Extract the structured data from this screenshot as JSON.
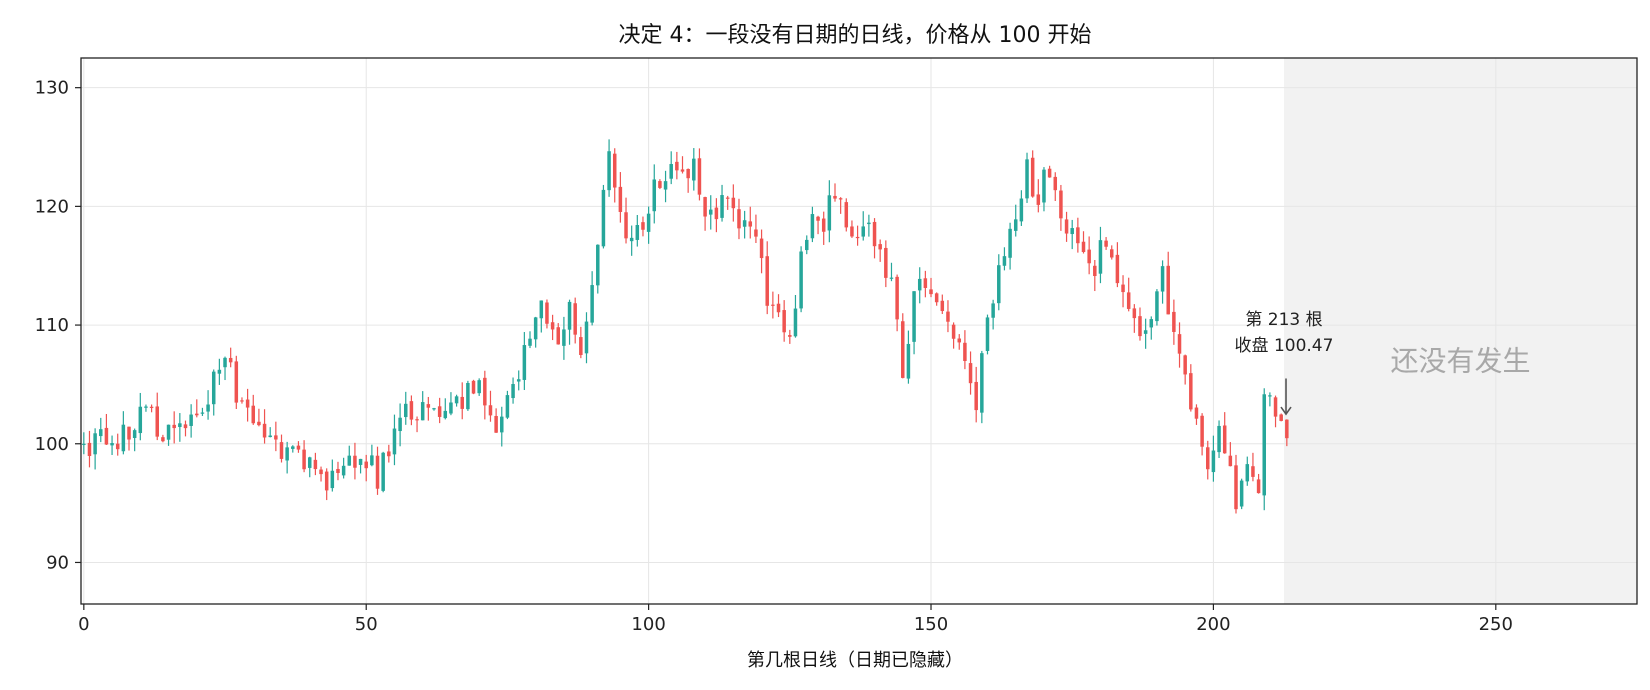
{
  "chart_data": {
    "type": "candlestick",
    "title": "决定 4：一段没有日期的日线，价格从 100 开始",
    "xlabel": "第几根日线（日期已隐藏）",
    "ylabel": "",
    "xlim": [
      -0.5,
      275
    ],
    "ylim": [
      86.5,
      132.5
    ],
    "xticks": [
      0,
      50,
      100,
      150,
      200,
      250
    ],
    "yticks": [
      90,
      100,
      110,
      120,
      130
    ],
    "grid": true,
    "future_region": {
      "x_start": 212.5,
      "x_end": 275,
      "label": "还没有发生"
    },
    "annotation": {
      "x": 213,
      "y": 102.5,
      "line1": "第 213 根",
      "line2": "收盘 100.47"
    },
    "colors": {
      "up": "#26a69a",
      "down": "#ef5350",
      "future": "#f2f2f2",
      "grid": "#e6e6e6",
      "arrow": "#555555"
    },
    "anchors": [
      [
        0,
        100
      ],
      [
        5,
        100.5
      ],
      [
        8,
        101
      ],
      [
        10,
        102.5
      ],
      [
        12,
        103
      ],
      [
        14,
        100
      ],
      [
        17,
        102.5
      ],
      [
        20,
        102
      ],
      [
        22,
        104
      ],
      [
        25,
        107.5
      ],
      [
        27,
        104
      ],
      [
        29,
        102.5
      ],
      [
        31,
        102
      ],
      [
        33,
        100
      ],
      [
        35,
        99
      ],
      [
        37,
        100.5
      ],
      [
        40,
        98
      ],
      [
        43,
        97
      ],
      [
        45,
        97
      ],
      [
        48,
        98.5
      ],
      [
        50,
        99
      ],
      [
        52,
        97
      ],
      [
        54,
        99.5
      ],
      [
        57,
        102.5
      ],
      [
        60,
        103
      ],
      [
        62,
        102
      ],
      [
        65,
        103
      ],
      [
        68,
        104.5
      ],
      [
        71,
        104
      ],
      [
        73,
        102
      ],
      [
        75,
        103
      ],
      [
        78,
        108
      ],
      [
        80,
        111
      ],
      [
        82,
        111
      ],
      [
        84,
        107.5
      ],
      [
        86,
        112
      ],
      [
        88,
        108.5
      ],
      [
        90,
        114
      ],
      [
        92,
        121
      ],
      [
        93,
        124
      ],
      [
        95,
        119
      ],
      [
        97,
        117
      ],
      [
        99,
        119
      ],
      [
        101,
        121.5
      ],
      [
        104,
        123
      ],
      [
        106,
        123
      ],
      [
        108,
        124
      ],
      [
        109,
        121
      ],
      [
        111,
        119
      ],
      [
        113,
        121
      ],
      [
        115,
        119
      ],
      [
        117,
        118
      ],
      [
        119,
        117
      ],
      [
        121,
        112
      ],
      [
        123,
        111
      ],
      [
        125,
        109
      ],
      [
        127,
        115
      ],
      [
        129,
        119.5
      ],
      [
        131,
        119
      ],
      [
        133,
        121
      ],
      [
        135,
        119
      ],
      [
        137,
        117
      ],
      [
        139,
        119
      ],
      [
        141,
        116
      ],
      [
        143,
        114
      ],
      [
        145,
        106
      ],
      [
        147,
        113
      ],
      [
        149,
        113
      ],
      [
        151,
        113
      ],
      [
        153,
        111
      ],
      [
        155,
        109
      ],
      [
        157,
        106
      ],
      [
        158,
        104
      ],
      [
        160,
        111
      ],
      [
        162,
        114
      ],
      [
        164,
        117
      ],
      [
        166,
        120
      ],
      [
        167,
        123
      ],
      [
        169,
        121
      ],
      [
        171,
        123
      ],
      [
        173,
        119
      ],
      [
        175,
        118
      ],
      [
        177,
        117
      ],
      [
        179,
        115
      ],
      [
        181,
        117
      ],
      [
        183,
        114
      ],
      [
        185,
        111
      ],
      [
        187,
        109
      ],
      [
        189,
        110
      ],
      [
        191,
        114
      ],
      [
        193,
        109
      ],
      [
        195,
        106
      ],
      [
        197,
        101
      ],
      [
        199,
        99
      ],
      [
        201,
        102
      ],
      [
        203,
        97
      ],
      [
        204,
        95
      ],
      [
        206,
        98
      ],
      [
        208,
        96
      ],
      [
        209,
        103
      ],
      [
        211,
        103
      ],
      [
        212,
        101
      ],
      [
        213,
        100.47
      ]
    ]
  }
}
